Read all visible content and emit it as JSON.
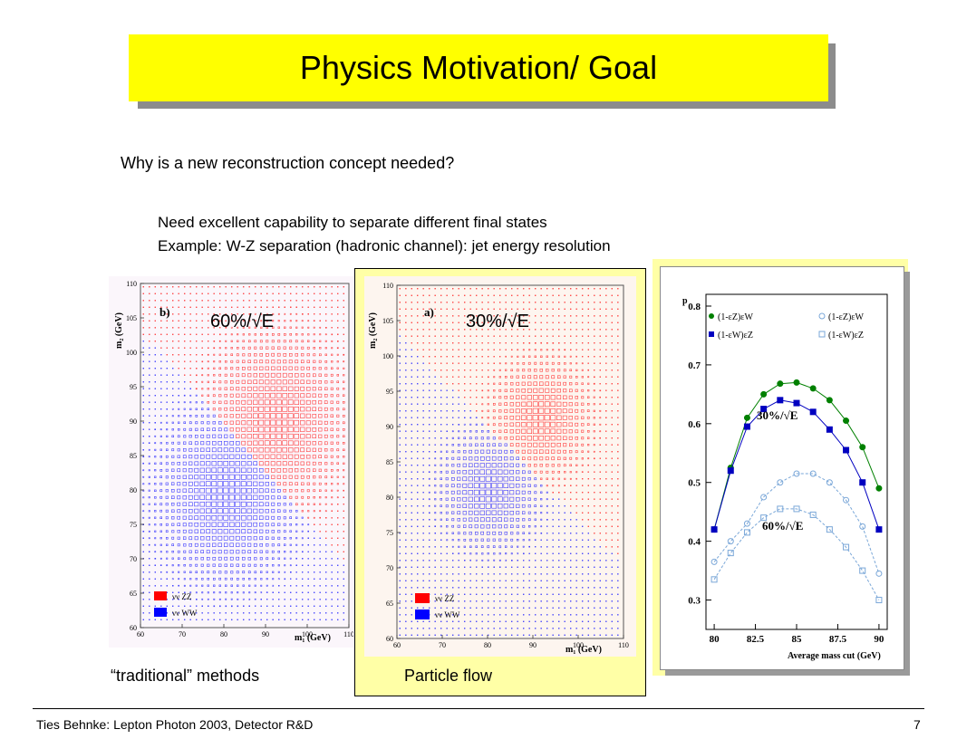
{
  "slide": {
    "title": "Physics Motivation/ Goal",
    "question": "Why is a new reconstruction concept needed?",
    "bullet_1": "Need excellent capability to separate different final states",
    "bullet_2": "Example: W-Z separation (hadronic channel): jet energy resolution"
  },
  "plots": {
    "traditional": {
      "resolution_label": "60%/√E",
      "panel_tag": "b)",
      "caption": "“traditional” methods"
    },
    "particle_flow": {
      "resolution_label": "30%/√E",
      "panel_tag": "a)",
      "caption": "Particle flow"
    },
    "shared": {
      "x_axis_label": "m₁ (GeV)",
      "y_axis_label": "m₂ (GeV)",
      "x_ticks": [
        "60",
        "70",
        "80",
        "90",
        "100",
        "110"
      ],
      "y_ticks": [
        "60",
        "65",
        "70",
        "75",
        "80",
        "85",
        "90",
        "95",
        "100",
        "105",
        "110"
      ],
      "legend_zz": "νν ZZ",
      "legend_ww": "νν WW",
      "zz_color": "#ff0000",
      "ww_color": "#0000ff"
    }
  },
  "chart_data": {
    "type": "line",
    "title": "",
    "xlabel": "Average mass cut (GeV)",
    "ylabel": "p",
    "xlim": [
      79.5,
      90.5
    ],
    "ylim": [
      0.25,
      0.82
    ],
    "x_ticks": [
      "80",
      "82.5",
      "85",
      "87.5",
      "90"
    ],
    "y_ticks": [
      "0.3",
      "0.4",
      "0.5",
      "0.6",
      "0.7",
      "0.8"
    ],
    "x": [
      80,
      81,
      82,
      83,
      84,
      85,
      86,
      87,
      88,
      89,
      90
    ],
    "series": [
      {
        "name": "(1-εZ)εW",
        "group": "30",
        "values": [
          0.42,
          0.525,
          0.61,
          0.65,
          0.668,
          0.67,
          0.66,
          0.64,
          0.605,
          0.56,
          0.49
        ]
      },
      {
        "name": "(1-εW)εZ",
        "group": "30",
        "values": [
          0.42,
          0.52,
          0.595,
          0.625,
          0.64,
          0.635,
          0.62,
          0.59,
          0.555,
          0.5,
          0.42
        ]
      },
      {
        "name": "(1-εZ)εW",
        "group": "60",
        "values": [
          0.365,
          0.4,
          0.43,
          0.475,
          0.5,
          0.515,
          0.515,
          0.5,
          0.47,
          0.425,
          0.345
        ]
      },
      {
        "name": "(1-εW)εZ",
        "group": "60",
        "values": [
          0.335,
          0.38,
          0.415,
          0.44,
          0.455,
          0.455,
          0.445,
          0.42,
          0.39,
          0.35,
          0.3
        ]
      }
    ],
    "annotations": [
      "30%/√E",
      "60%/√E"
    ],
    "legend_placement": "top",
    "colors": {
      "solid_30": "#008000",
      "square_30": "#0000c0",
      "open_60": "#7aa7d8"
    }
  },
  "footer": {
    "left": "Ties Behnke: Lepton Photon 2003, Detector R&D",
    "page_number": "7"
  }
}
